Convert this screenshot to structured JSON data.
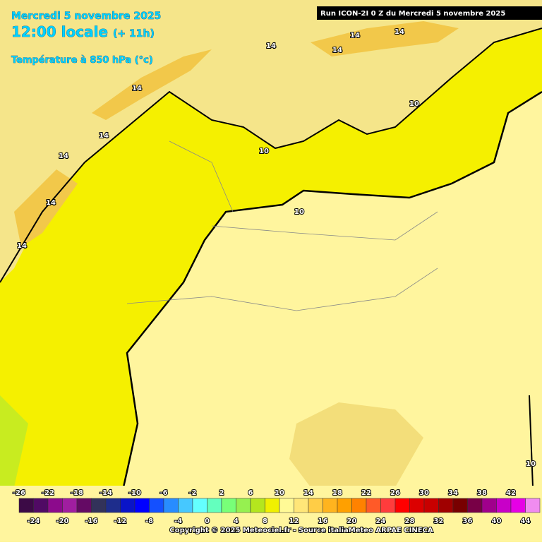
{
  "header": {
    "date": "Mercredi 5 novembre 2025",
    "time": "12:00 locale",
    "offset": "(+ 11h)",
    "parameter": "Température à 850 hPa (°c)",
    "run": "Run ICON-2I 0 Z du Mercredi 5 novembre 2025"
  },
  "contour_labels": [
    "14",
    "14",
    "14",
    "14",
    "14",
    "14",
    "14",
    "14",
    "14",
    "10",
    "10",
    "10",
    "10"
  ],
  "scale": {
    "values": [
      -26,
      -24,
      -22,
      -20,
      -18,
      -16,
      -14,
      -12,
      -10,
      -8,
      -6,
      -4,
      -2,
      0,
      2,
      4,
      6,
      8,
      10,
      12,
      14,
      16,
      18,
      20,
      22,
      24,
      26,
      28,
      30,
      32,
      34,
      36,
      38,
      40,
      42,
      44
    ],
    "colors": [
      "#3c0a46",
      "#500a64",
      "#8c0a8c",
      "#a01ea0",
      "#640a64",
      "#32325a",
      "#1e2d8c",
      "#0a14c8",
      "#0000ff",
      "#1450ff",
      "#288cff",
      "#46c8ff",
      "#64ffff",
      "#64ffbe",
      "#78ff78",
      "#96f050",
      "#b4e61e",
      "#f0f000",
      "#fffa96",
      "#ffe678",
      "#ffcd46",
      "#ffb41e",
      "#ffa000",
      "#ff8200",
      "#ff5a28",
      "#ff3c3c",
      "#ff0000",
      "#dc0000",
      "#c80000",
      "#a00000",
      "#780000",
      "#780046",
      "#a0008c",
      "#c800c8",
      "#e600e6",
      "#f08cf0"
    ]
  },
  "footer": {
    "copyright": "Copyright © 2025 Meteociel.fr - Source italiaMeteo ARPAE CINECA"
  }
}
